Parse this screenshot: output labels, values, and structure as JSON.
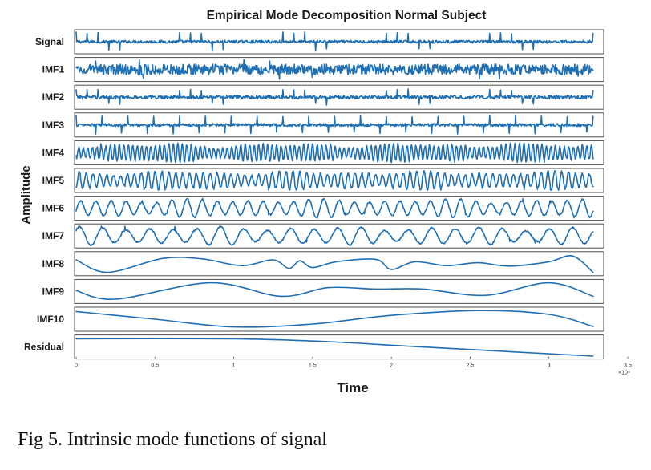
{
  "chart_data": {
    "type": "line",
    "title": "Empirical Mode Decomposition Normal Subject",
    "xlabel": "Time",
    "ylabel": "Amplitude",
    "xlim": [
      0,
      3.5
    ],
    "x_exponent_label": "×10⁴",
    "x_ticks": [
      "0",
      "0.5",
      "1",
      "1.5",
      "2",
      "2.5",
      "3",
      "3.5"
    ],
    "signal_end": 3.28,
    "grid": false,
    "series": [
      {
        "name": "Signal",
        "kind": "spiky",
        "cycles": 95,
        "noise": 0.25,
        "spike": 1.0
      },
      {
        "name": "IMF1",
        "kind": "noise",
        "cycles": 160,
        "noise": 0.55,
        "spike": 0.5
      },
      {
        "name": "IMF2",
        "kind": "spiky",
        "cycles": 95,
        "noise": 0.3,
        "spike": 0.85
      },
      {
        "name": "IMF3",
        "kind": "spiky",
        "cycles": 80,
        "noise": 0.25,
        "spike": 1.0
      },
      {
        "name": "IMF4",
        "kind": "osc",
        "cycles": 115,
        "noise": 0.6,
        "spike": 0.3
      },
      {
        "name": "IMF5",
        "kind": "osc",
        "cycles": 75,
        "noise": 0.55,
        "spike": 0.2
      },
      {
        "name": "IMF6",
        "kind": "osc",
        "cycles": 34,
        "noise": 0.3,
        "spike": 0.1
      },
      {
        "name": "IMF7",
        "kind": "osc",
        "cycles": 22,
        "noise": 0.3,
        "spike": 0.1
      },
      {
        "name": "IMF8",
        "kind": "spline",
        "points": [
          [
            0,
            0.4
          ],
          [
            0.2,
            -0.9
          ],
          [
            0.55,
            0.55
          ],
          [
            0.8,
            0.5
          ],
          [
            1.05,
            -0.2
          ],
          [
            1.25,
            0.4
          ],
          [
            1.35,
            -0.5
          ],
          [
            1.42,
            0.3
          ],
          [
            1.5,
            -0.4
          ],
          [
            1.65,
            0.2
          ],
          [
            1.9,
            0.45
          ],
          [
            2.0,
            -0.6
          ],
          [
            2.15,
            0.2
          ],
          [
            2.35,
            -0.2
          ],
          [
            2.55,
            0.1
          ],
          [
            2.75,
            -0.25
          ],
          [
            3.0,
            0.2
          ],
          [
            3.15,
            0.8
          ],
          [
            3.28,
            -0.9
          ]
        ]
      },
      {
        "name": "IMF9",
        "kind": "spline",
        "points": [
          [
            0,
            0.1
          ],
          [
            0.25,
            -0.8
          ],
          [
            0.85,
            0.9
          ],
          [
            1.3,
            -0.5
          ],
          [
            1.6,
            0.4
          ],
          [
            1.9,
            0.25
          ],
          [
            2.2,
            0.25
          ],
          [
            2.6,
            -0.4
          ],
          [
            3.0,
            0.9
          ],
          [
            3.28,
            -0.5
          ]
        ]
      },
      {
        "name": "IMF10",
        "kind": "spline",
        "points": [
          [
            0,
            0.8
          ],
          [
            0.5,
            0.0
          ],
          [
            1.0,
            -0.8
          ],
          [
            1.5,
            -0.5
          ],
          [
            2.0,
            0.4
          ],
          [
            2.55,
            0.9
          ],
          [
            3.0,
            0.5
          ],
          [
            3.28,
            -0.75
          ]
        ]
      },
      {
        "name": "Residual",
        "kind": "line",
        "points": [
          [
            0,
            0.85
          ],
          [
            1.0,
            0.85
          ],
          [
            1.6,
            0.55
          ],
          [
            2.2,
            0.0
          ],
          [
            3.28,
            -0.95
          ]
        ]
      }
    ]
  },
  "caption": "Fig 5. Intrinsic mode functions of signal"
}
